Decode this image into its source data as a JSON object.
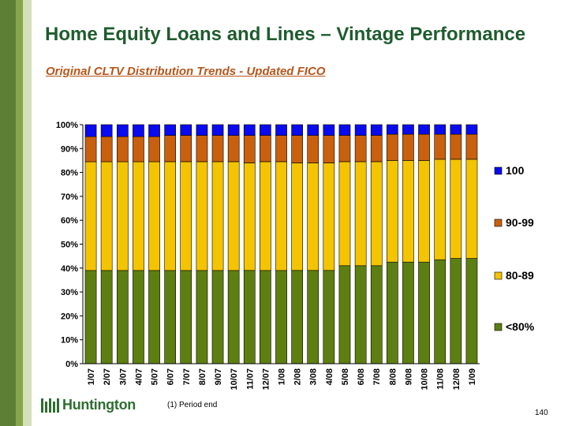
{
  "header": {
    "title": "Home Equity Loans and Lines – Vintage Performance",
    "subtitle": "Original CLTV Distribution Trends - Updated FICO"
  },
  "footer": {
    "logo_text": "Huntington",
    "footnote": "(1)  Period end",
    "page_number": "140"
  },
  "colors": {
    "sidebar_dark": "#5d7f35",
    "sidebar_mid": "#86a64a",
    "sidebar_light": "#d4e0b6",
    "title": "#1f5c2e",
    "subtitle": "#b5561b"
  },
  "chart_data": {
    "type": "bar",
    "stacked": true,
    "percent": true,
    "categories": [
      "1/07",
      "2/07",
      "3/07",
      "4/07",
      "5/07",
      "6/07",
      "7/07",
      "8/07",
      "9/07",
      "10/07",
      "11/07",
      "12/07",
      "1/08",
      "2/08",
      "3/08",
      "4/08",
      "5/08",
      "6/08",
      "7/08",
      "8/08",
      "9/08",
      "10/08",
      "11/08",
      "12/08",
      "1/09"
    ],
    "ylim": [
      0,
      100
    ],
    "yticks": [
      "0%",
      "10%",
      "20%",
      "30%",
      "40%",
      "50%",
      "60%",
      "70%",
      "80%",
      "90%",
      "100%"
    ],
    "grid": false,
    "legend": "right",
    "series": [
      {
        "name": "<80%",
        "color": "#5d7f12",
        "values": [
          39,
          39,
          39,
          39,
          39,
          39,
          39,
          39,
          39,
          39,
          39,
          39,
          39,
          39,
          39,
          39,
          41,
          41,
          41,
          42.5,
          42.5,
          42.5,
          43.5,
          44,
          44
        ]
      },
      {
        "name": "80-89",
        "color": "#f4c400",
        "values": [
          45.5,
          45.5,
          45.5,
          45.5,
          45.5,
          45.5,
          45.5,
          45.5,
          45.5,
          45.5,
          45,
          45.5,
          45.5,
          45,
          45,
          45,
          43.5,
          43.5,
          43.5,
          42.5,
          42.5,
          42.5,
          42,
          41.5,
          41.5
        ]
      },
      {
        "name": "90-99",
        "color": "#c8600e",
        "values": [
          10.5,
          10.5,
          10.5,
          10.5,
          10.5,
          11,
          11,
          11,
          11,
          11,
          11.5,
          11,
          11,
          11.5,
          11.5,
          11.5,
          11,
          11,
          11,
          11,
          11,
          11,
          10.5,
          10.5,
          10.5
        ]
      },
      {
        "name": "100",
        "color": "#0a0aee",
        "values": [
          5,
          5,
          5,
          5,
          5,
          4.5,
          4.5,
          4.5,
          4.5,
          4.5,
          4.5,
          4.5,
          4.5,
          4.5,
          4.5,
          4.5,
          4.5,
          4.5,
          4.5,
          4,
          4,
          4,
          4,
          4,
          4
        ]
      }
    ]
  }
}
